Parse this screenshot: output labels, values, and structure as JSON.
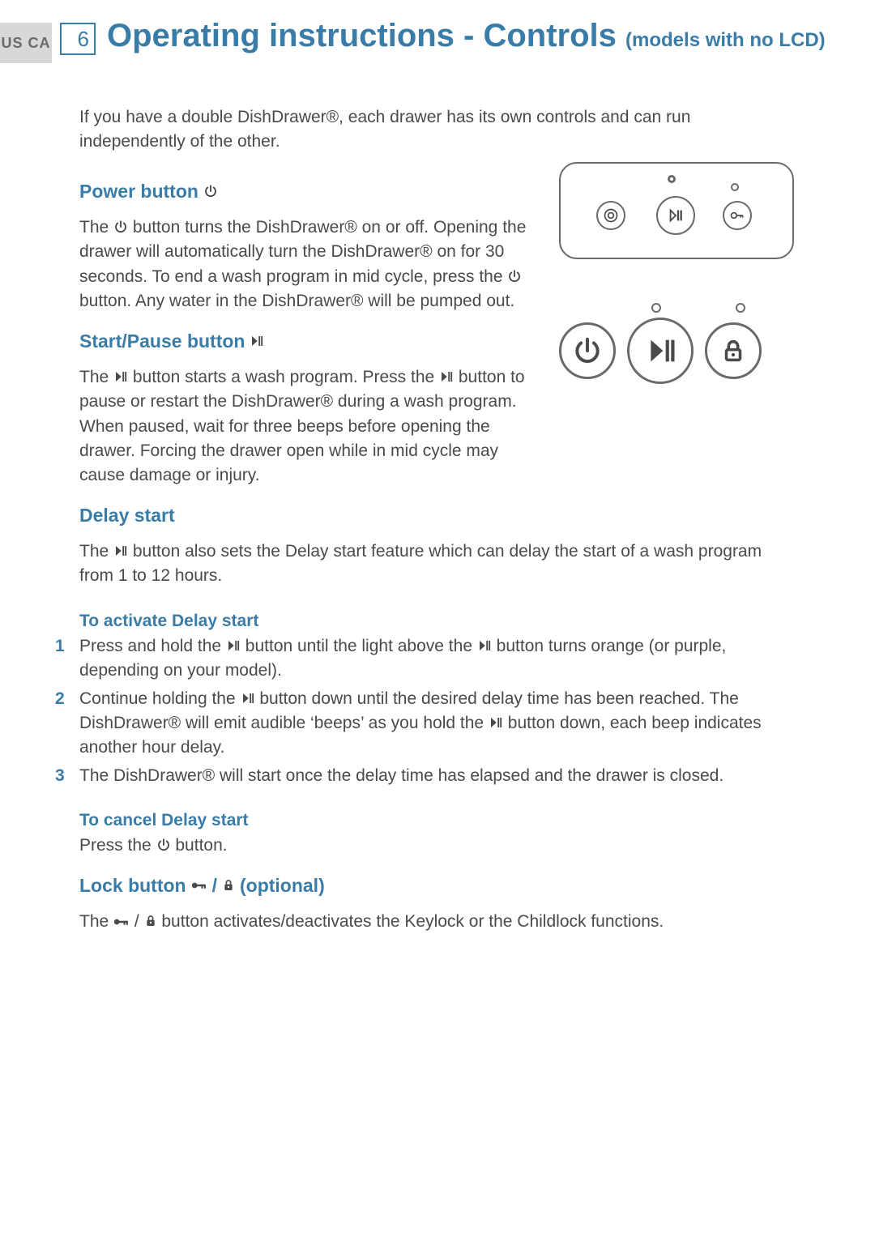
{
  "region_code": "US CA",
  "page_number": "6",
  "title": "Operating instructions - Controls",
  "subtitle": "(models with no LCD)",
  "colors": {
    "accent": "#3a7ca8",
    "body_text": "#4a4a4a",
    "tab_bg": "#d7d8d9",
    "icon_stroke": "#4a4a4a"
  },
  "intro": "If you have a double DishDrawer®, each drawer has its own controls and can run independently of the other.",
  "sections": {
    "power": {
      "heading": "Power button",
      "body_parts": [
        "The ",
        " button turns the DishDrawer® on or off.  Opening the drawer will automatically turn the DishDrawer® on for 30 seconds.  To end a wash program in mid cycle, press the ",
        " button.  Any water in the DishDrawer® will be  pumped out."
      ]
    },
    "startpause": {
      "heading": "Start/Pause button",
      "body_parts": [
        "The ",
        " button starts a wash program.  Press the ",
        " button to pause or restart the DishDrawer® during a wash program.  When paused, wait for three beeps before opening the drawer.  Forcing the drawer open while in mid cycle may cause damage or injury."
      ]
    },
    "delay": {
      "heading": "Delay start",
      "body_parts": [
        "The ",
        " button also sets the Delay start feature which can delay the start of a wash program from 1 to 12 hours."
      ],
      "activate_heading": "To activate Delay start",
      "steps": [
        {
          "num": "1",
          "pre": "Press and hold the ",
          "mid": " button until the light above the ",
          "post": " button turns orange (or purple, depending on your model)."
        },
        {
          "num": "2",
          "pre": "Continue holding the ",
          "mid": " button down until the desired delay time has been reached.  The DishDrawer® will emit audible ‘beeps’ as you hold the ",
          "post": " button down, each beep indicates another hour delay."
        },
        {
          "num": "3",
          "pre": "The DishDrawer® will start once the delay time has elapsed and the drawer is closed.",
          "mid": "",
          "post": ""
        }
      ],
      "cancel_heading": "To cancel Delay start",
      "cancel_pre": "Press the ",
      "cancel_post": " button."
    },
    "lock": {
      "heading_pre": "Lock button ",
      "heading_post": "  (optional)",
      "body_pre": "The ",
      "body_post": "  button activates/deactivates the Keylock or the Childlock functions."
    }
  }
}
